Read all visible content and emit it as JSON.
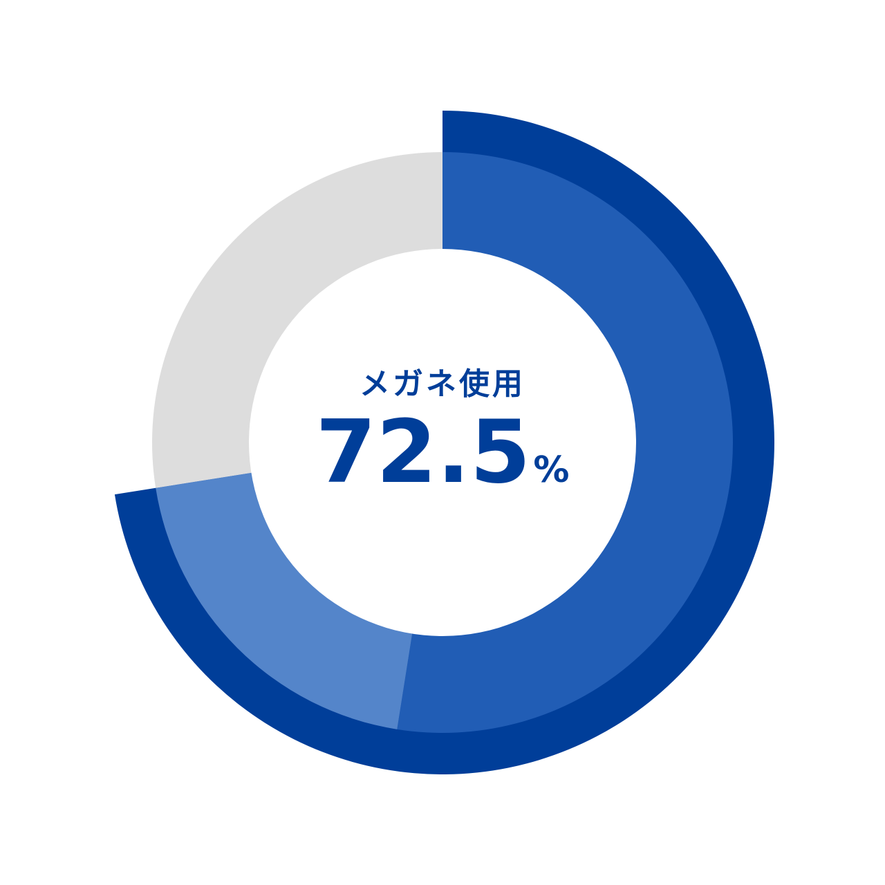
{
  "chart_data": {
    "type": "pie",
    "center_label": "メガネ使用",
    "center_value": "72.5",
    "center_unit": "%",
    "total_percent": 72.5,
    "inner_slices": [
      {
        "value": 52.5,
        "color": "#215DB5"
      },
      {
        "value": 20.0,
        "color": "#5485CA"
      },
      {
        "value": 27.5,
        "color": "#DDDDDD"
      }
    ],
    "outer_arc": {
      "value": 72.5,
      "color": "#003E99"
    }
  }
}
